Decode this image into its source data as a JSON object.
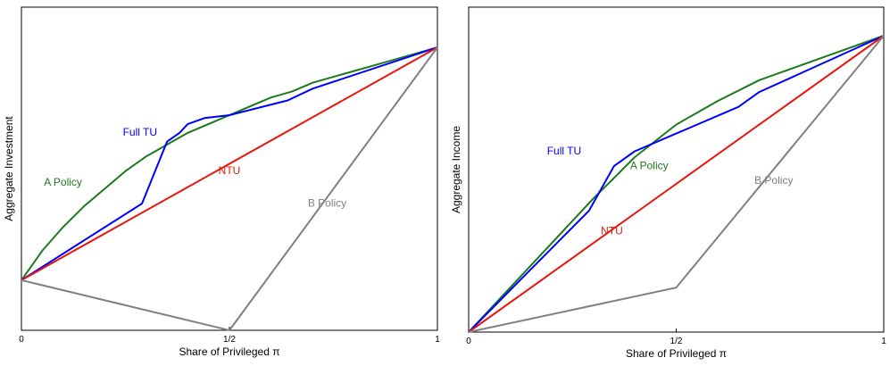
{
  "colors": {
    "full_tu": "#0000ff",
    "ntu": "#e8170e",
    "a_policy": "#1b7a1b",
    "b_policy": "#808080",
    "axis": "#000000"
  },
  "chart_data": [
    {
      "type": "line",
      "xlabel": "Share of Privileged π",
      "ylabel": "Aggregate Investment",
      "xlim": [
        0,
        1
      ],
      "ylim": [
        0,
        1
      ],
      "xticks": [
        {
          "value": 0,
          "label": "0"
        },
        {
          "value": 0.5,
          "label": "1/2"
        },
        {
          "value": 1,
          "label": "1"
        }
      ],
      "series": [
        {
          "key": "a_policy",
          "name": "A Policy",
          "label_at": [
            0.1,
            0.49
          ],
          "x": [
            0,
            0.05,
            0.1,
            0.15,
            0.2,
            0.25,
            0.3,
            0.35,
            0.4,
            0.45,
            0.5,
            0.55,
            0.6,
            0.65,
            0.7,
            0.75,
            0.8,
            0.85,
            0.9,
            0.95,
            1
          ],
          "y": [
            0.17,
            0.27,
            0.35,
            0.42,
            0.48,
            0.54,
            0.59,
            0.63,
            0.67,
            0.7,
            0.73,
            0.76,
            0.79,
            0.81,
            0.84,
            0.86,
            0.88,
            0.9,
            0.92,
            0.94,
            0.96
          ]
        },
        {
          "key": "full_tu",
          "name": "Full TU",
          "label_at": [
            0.285,
            0.66
          ],
          "x": [
            0,
            0.29,
            0.35,
            0.38,
            0.4,
            0.44,
            0.5,
            0.64,
            0.7,
            1
          ],
          "y": [
            0.17,
            0.43,
            0.64,
            0.67,
            0.7,
            0.72,
            0.73,
            0.78,
            0.82,
            0.96
          ]
        },
        {
          "key": "ntu",
          "name": "NTU",
          "label_at": [
            0.5,
            0.53
          ],
          "x": [
            0,
            1
          ],
          "y": [
            0.17,
            0.96
          ]
        },
        {
          "key": "b_policy",
          "name": "B Policy",
          "label_at": [
            0.735,
            0.42
          ],
          "x": [
            0,
            0.5,
            1
          ],
          "y": [
            0.17,
            0,
            0.96
          ]
        }
      ]
    },
    {
      "type": "line",
      "xlabel": "Share of Privileged π",
      "ylabel": "Aggregate Income",
      "xlim": [
        0,
        1
      ],
      "ylim": [
        0,
        1
      ],
      "xticks": [
        {
          "value": 0,
          "label": "0"
        },
        {
          "value": 0.5,
          "label": "1/2"
        },
        {
          "value": 1,
          "label": "1"
        }
      ],
      "series": [
        {
          "key": "a_policy",
          "name": "A Policy",
          "label_at": [
            0.435,
            0.55
          ],
          "x": [
            0,
            0.1,
            0.2,
            0.3,
            0.35,
            0.4,
            0.5,
            0.6,
            0.7,
            0.8,
            0.9,
            1
          ],
          "y": [
            0,
            0.15,
            0.3,
            0.45,
            0.52,
            0.59,
            0.7,
            0.78,
            0.85,
            0.9,
            0.95,
            1
          ]
        },
        {
          "key": "full_tu",
          "name": "Full TU",
          "label_at": [
            0.23,
            0.6
          ],
          "x": [
            0,
            0.29,
            0.35,
            0.4,
            0.5,
            0.65,
            0.7,
            1
          ],
          "y": [
            0,
            0.41,
            0.56,
            0.61,
            0.67,
            0.76,
            0.81,
            1
          ]
        },
        {
          "key": "ntu",
          "name": "NTU",
          "label_at": [
            0.345,
            0.33
          ],
          "x": [
            0,
            1
          ],
          "y": [
            0,
            1
          ]
        },
        {
          "key": "b_policy",
          "name": "B Policy",
          "label_at": [
            0.735,
            0.5
          ],
          "x": [
            0,
            0.5,
            1
          ],
          "y": [
            0,
            0.15,
            1
          ]
        }
      ]
    }
  ]
}
